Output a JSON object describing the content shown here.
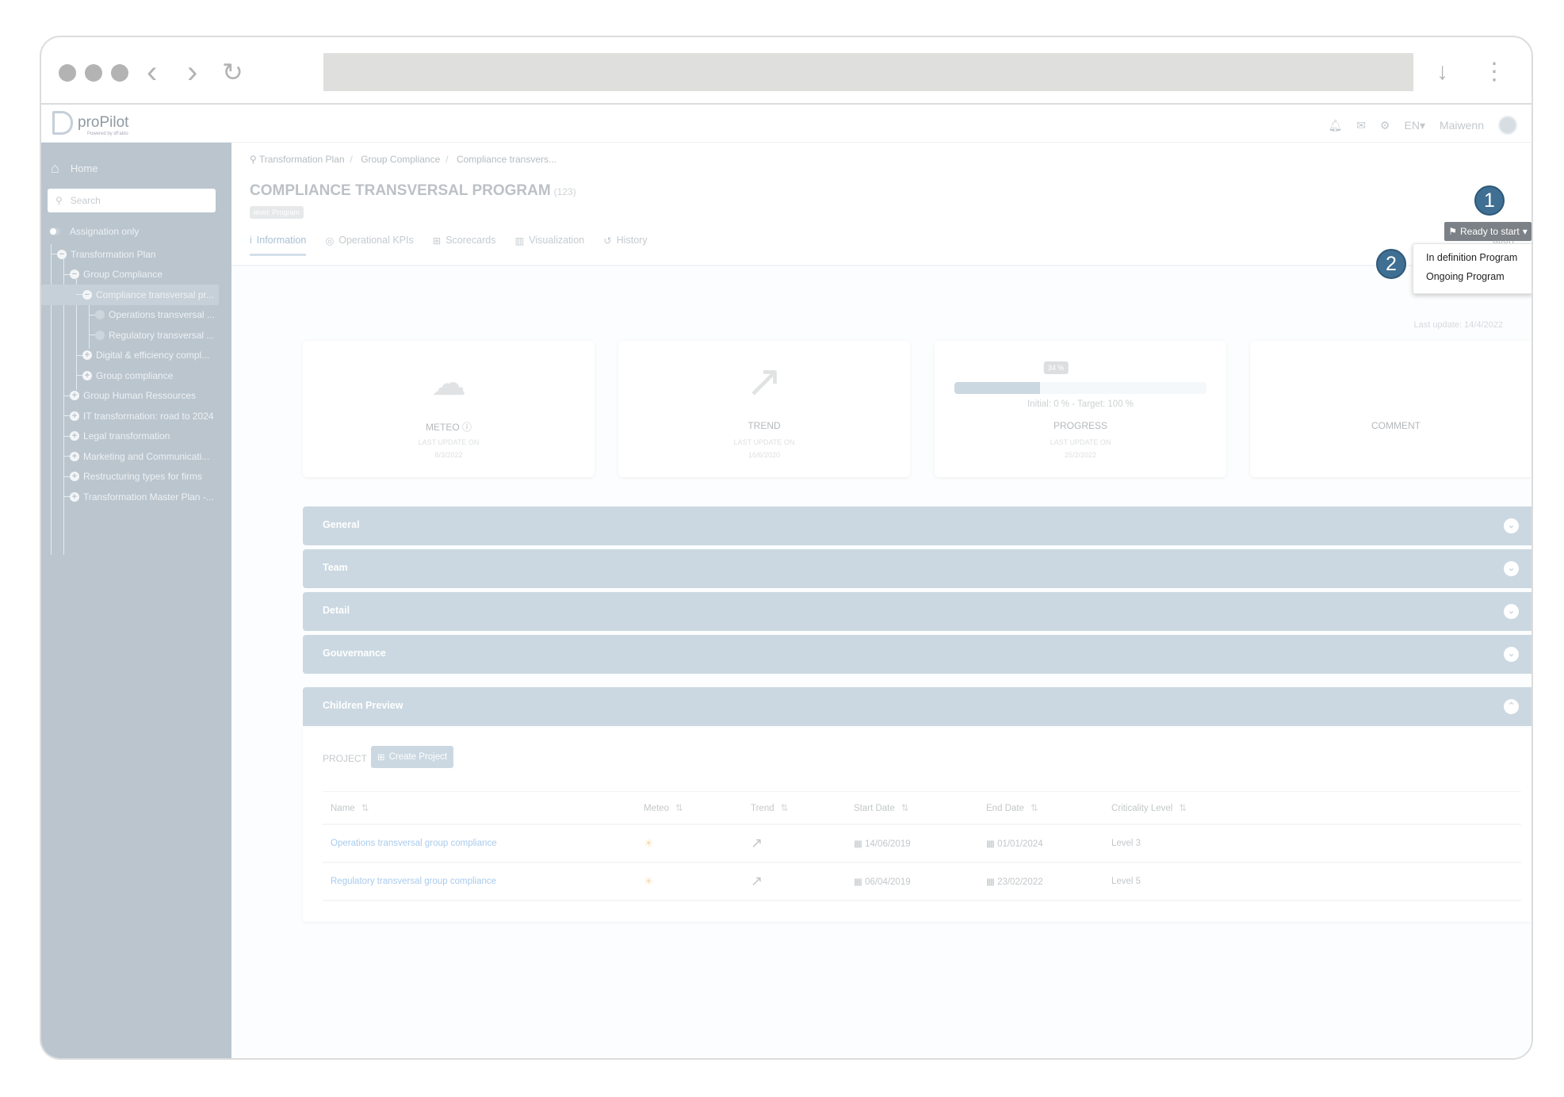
{
  "browser": {
    "dots": 3,
    "icons": [
      "back-icon",
      "forward-icon",
      "reload-icon",
      "download-icon",
      "kebab-menu-icon"
    ]
  },
  "app": {
    "logo": "proPilot",
    "logo_sub": "Powered by dFakto",
    "lang": "EN",
    "user": "Maiwenn"
  },
  "sidebar": {
    "home": "Home",
    "search_placeholder": "Search",
    "assignation": "Assignation only",
    "tree": [
      {
        "label": "Transformation Plan",
        "level": 0,
        "state": "expanded"
      },
      {
        "label": "Group Compliance",
        "level": 1,
        "state": "expanded"
      },
      {
        "label": "Compliance transversal pr...",
        "level": 2,
        "state": "expanded",
        "selected": true
      },
      {
        "label": "Operations transversal ...",
        "level": 3,
        "state": "leaf"
      },
      {
        "label": "Regulatory transversal ...",
        "level": 3,
        "state": "leaf"
      },
      {
        "label": "Digital & efficiency compl...",
        "level": 2,
        "state": "collapsed"
      },
      {
        "label": "Group compliance",
        "level": 2,
        "state": "collapsed"
      },
      {
        "label": "Group Human Ressources",
        "level": 1,
        "state": "collapsed"
      },
      {
        "label": "IT transformation: road to 2024",
        "level": 1,
        "state": "collapsed"
      },
      {
        "label": "Legal transformation",
        "level": 1,
        "state": "collapsed"
      },
      {
        "label": "Marketing and Communicati...",
        "level": 1,
        "state": "collapsed"
      },
      {
        "label": "Restructuring types for firms",
        "level": 1,
        "state": "collapsed"
      },
      {
        "label": "Transformation Master Plan -...",
        "level": 1,
        "state": "collapsed"
      }
    ]
  },
  "breadcrumb": [
    "Transformation Plan",
    "Group Compliance",
    "Compliance transvers..."
  ],
  "page": {
    "title": "COMPLIANCE TRANSVERSAL PROGRAM",
    "id": "(123)",
    "level_badge": "level: Program",
    "status": "Ready to start",
    "last_update": "Last update: 14/4/2022"
  },
  "tabs": [
    {
      "label": "Information",
      "icon": "i",
      "active": true
    },
    {
      "label": "Operational KPIs",
      "icon": "◎"
    },
    {
      "label": "Scorecards",
      "icon": "⊞"
    },
    {
      "label": "Visualization",
      "icon": "▥"
    },
    {
      "label": "History",
      "icon": "↺"
    }
  ],
  "tab_partial": "ation",
  "dropdown": [
    "In definition Program",
    "Ongoing Program"
  ],
  "steps": [
    "1",
    "2"
  ],
  "cards": {
    "meteo": {
      "label": "METEO",
      "sub": "LAST UPDATE ON",
      "date": "8/3/2022",
      "icon": "cloud-icon"
    },
    "trend": {
      "label": "TREND",
      "sub": "LAST UPDATE ON",
      "date": "16/6/2020",
      "icon": "arrow-up-right-icon"
    },
    "progress": {
      "label": "PROGRESS",
      "sub": "LAST UPDATE ON",
      "date": "25/2/2022",
      "value_pct": 34,
      "value_label": "34 %",
      "info": "Initial: 0 % - Target: 100 %"
    },
    "comment": {
      "label": "COMMENT"
    }
  },
  "sections": [
    "General",
    "Team",
    "Detail",
    "Gouvernance"
  ],
  "children": {
    "title": "Children Preview",
    "project_label": "PROJECT",
    "create_label": "Create Project",
    "columns": [
      "Name",
      "Meteo",
      "Trend",
      "Start Date",
      "End Date",
      "Criticality Level"
    ],
    "rows": [
      {
        "name": "Operations transversal group compliance",
        "meteo": "sun",
        "trend": "up-right",
        "start": "14/06/2019",
        "end": "01/01/2024",
        "criticality": "Level 3"
      },
      {
        "name": "Regulatory transversal group compliance",
        "meteo": "sun",
        "trend": "up-right",
        "start": "06/04/2019",
        "end": "23/02/2022",
        "criticality": "Level 5"
      }
    ]
  },
  "colors": {
    "sidebar": "#bac5ce",
    "accordion": "#cbd8e1",
    "step_badge": "#3f6f93",
    "status_button": "#7b8186",
    "link": "#a9cbec"
  }
}
